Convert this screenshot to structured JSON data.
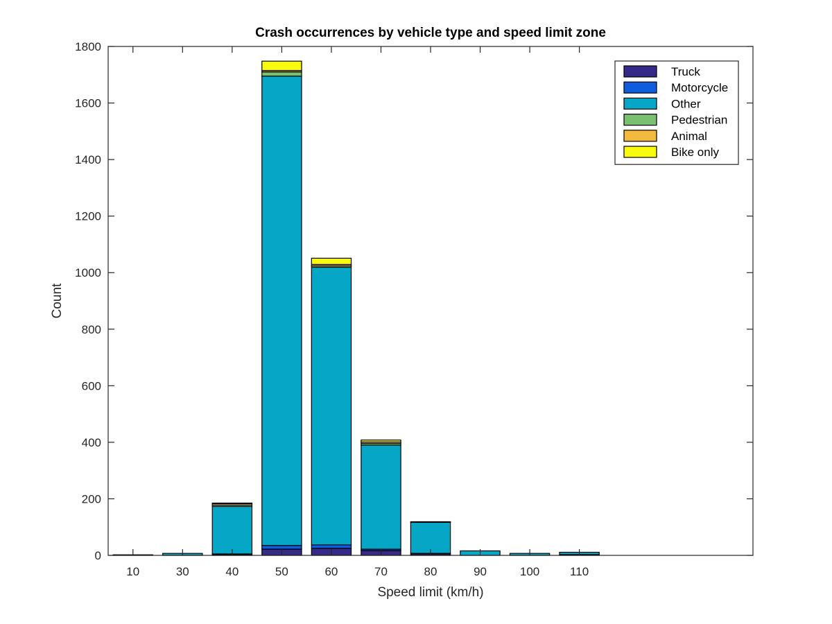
{
  "chart_data": {
    "type": "bar",
    "stacked": true,
    "title": "Crash occurrences by vehicle type and speed limit zone",
    "xlabel": "Speed limit (km/h)",
    "ylabel": "Count",
    "categories": [
      "10",
      "30",
      "40",
      "50",
      "60",
      "70",
      "80",
      "90",
      "100",
      "110"
    ],
    "ylim": [
      0,
      1800
    ],
    "yticks": [
      0,
      200,
      400,
      600,
      800,
      1000,
      1200,
      1400,
      1600,
      1800
    ],
    "grid": false,
    "legend_position": "top-right",
    "series": [
      {
        "name": "Truck",
        "color": "#352a87",
        "values": [
          0,
          0,
          3,
          22,
          25,
          17,
          5,
          0,
          0,
          3
        ]
      },
      {
        "name": "Motorcycle",
        "color": "#0f5cdd",
        "values": [
          0,
          0,
          2,
          13,
          12,
          5,
          2,
          0,
          0,
          0
        ]
      },
      {
        "name": "Other",
        "color": "#06a7c6",
        "values": [
          2,
          7,
          168,
          1660,
          982,
          368,
          110,
          16,
          7,
          8
        ]
      },
      {
        "name": "Pedestrian",
        "color": "#7bbf70",
        "values": [
          0,
          0,
          5,
          15,
          5,
          6,
          1,
          0,
          0,
          0
        ]
      },
      {
        "name": "Animal",
        "color": "#f4ba3d",
        "values": [
          0,
          0,
          5,
          5,
          5,
          5,
          1,
          0,
          0,
          0
        ]
      },
      {
        "name": "Bike only",
        "color": "#f9fb0e",
        "values": [
          0,
          0,
          2,
          33,
          22,
          7,
          0,
          0,
          0,
          0
        ]
      }
    ]
  }
}
